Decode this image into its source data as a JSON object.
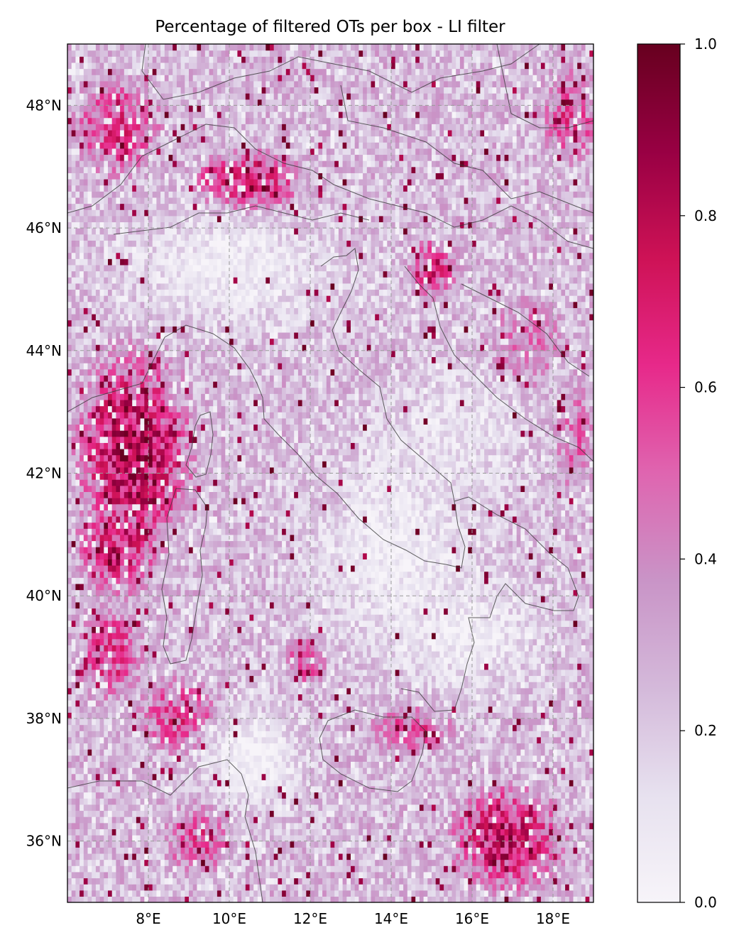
{
  "chart_data": {
    "type": "heatmap",
    "title": "Percentage of filtered OTs per box - LI filter",
    "xlim": [
      6.0,
      19.0
    ],
    "ylim": [
      35.0,
      49.0
    ],
    "x_ticks": [
      {
        "value": 8,
        "label": "8°E"
      },
      {
        "value": 10,
        "label": "10°E"
      },
      {
        "value": 12,
        "label": "12°E"
      },
      {
        "value": 14,
        "label": "14°E"
      },
      {
        "value": 16,
        "label": "16°E"
      },
      {
        "value": 18,
        "label": "18°E"
      }
    ],
    "y_ticks": [
      {
        "value": 36,
        "label": "36°N"
      },
      {
        "value": 38,
        "label": "38°N"
      },
      {
        "value": 40,
        "label": "40°N"
      },
      {
        "value": 42,
        "label": "42°N"
      },
      {
        "value": 44,
        "label": "44°N"
      },
      {
        "value": 46,
        "label": "46°N"
      },
      {
        "value": 48,
        "label": "48°N"
      }
    ],
    "grid": true,
    "colorbar": {
      "range": [
        0.0,
        1.0
      ],
      "ticks": [
        {
          "value": 0.0,
          "label": "0.0"
        },
        {
          "value": 0.2,
          "label": "0.2"
        },
        {
          "value": 0.4,
          "label": "0.4"
        },
        {
          "value": 0.6,
          "label": "0.6"
        },
        {
          "value": 0.8,
          "label": "0.8"
        },
        {
          "value": 1.0,
          "label": "1.0"
        }
      ],
      "colormap": "PuRd",
      "stops": [
        "#f7f4f9",
        "#e7e1ef",
        "#d4b9da",
        "#c994c7",
        "#df65b0",
        "#e7298a",
        "#ce1256",
        "#980043",
        "#67001f"
      ]
    },
    "grid_resolution_deg": 0.1,
    "field_model": {
      "description": "approximate spatial pattern of per-box values, lon/lat in degrees",
      "hotspots": [
        {
          "lon": 7.6,
          "lat": 42.3,
          "rx": 1.6,
          "ry": 1.9,
          "value": 0.8
        },
        {
          "lon": 7.2,
          "lat": 40.8,
          "rx": 1.2,
          "ry": 1.0,
          "value": 0.7
        },
        {
          "lon": 10.4,
          "lat": 46.7,
          "rx": 1.6,
          "ry": 0.6,
          "value": 0.75
        },
        {
          "lon": 7.2,
          "lat": 47.6,
          "rx": 1.4,
          "ry": 1.0,
          "value": 0.6
        },
        {
          "lon": 16.8,
          "lat": 36.0,
          "rx": 1.6,
          "ry": 1.0,
          "value": 0.75
        },
        {
          "lon": 15.0,
          "lat": 45.3,
          "rx": 0.8,
          "ry": 0.6,
          "value": 0.65
        },
        {
          "lon": 18.4,
          "lat": 47.8,
          "rx": 1.0,
          "ry": 1.0,
          "value": 0.55
        },
        {
          "lon": 8.8,
          "lat": 38.0,
          "rx": 1.4,
          "ry": 0.8,
          "value": 0.6
        },
        {
          "lon": 7.0,
          "lat": 39.0,
          "rx": 1.0,
          "ry": 1.0,
          "value": 0.6
        },
        {
          "lon": 11.8,
          "lat": 38.9,
          "rx": 0.7,
          "ry": 0.5,
          "value": 0.6
        },
        {
          "lon": 14.5,
          "lat": 37.8,
          "rx": 1.4,
          "ry": 0.5,
          "value": 0.55
        },
        {
          "lon": 9.2,
          "lat": 36.0,
          "rx": 1.2,
          "ry": 0.8,
          "value": 0.55
        },
        {
          "lon": 17.2,
          "lat": 44.0,
          "rx": 1.6,
          "ry": 1.2,
          "value": 0.45
        },
        {
          "lon": 12.5,
          "lat": 41.6,
          "rx": 1.5,
          "ry": 1.0,
          "value": 0.35
        },
        {
          "lon": 18.5,
          "lat": 42.5,
          "rx": 0.8,
          "ry": 1.5,
          "value": 0.45
        }
      ],
      "lowzones": [
        {
          "lon": 10.0,
          "lat": 45.3,
          "rx": 2.6,
          "ry": 0.9,
          "value": 0.05
        },
        {
          "lon": 14.0,
          "lat": 40.8,
          "rx": 2.0,
          "ry": 1.6,
          "value": 0.05
        },
        {
          "lon": 10.5,
          "lat": 37.3,
          "rx": 1.2,
          "ry": 0.8,
          "value": 0.02
        },
        {
          "lon": 15.6,
          "lat": 42.6,
          "rx": 1.6,
          "ry": 1.2,
          "value": 0.1
        },
        {
          "lon": 15.8,
          "lat": 39.3,
          "rx": 1.8,
          "ry": 0.8,
          "value": 0.05
        }
      ],
      "background": 0.25
    }
  }
}
